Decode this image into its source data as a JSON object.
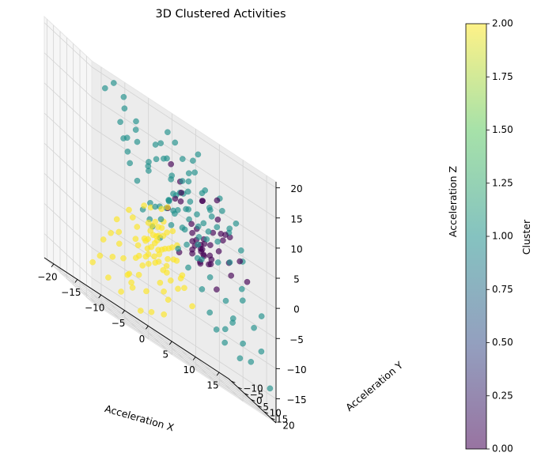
{
  "chart_data": {
    "type": "scatter",
    "projection": "3d",
    "title": "3D Clustered Activities",
    "xlabel": "Acceleration X",
    "ylabel": "Acceleration Y",
    "zlabel": "Acceleration Z",
    "xlim": [
      -22,
      17
    ],
    "ylim": [
      -12,
      24
    ],
    "zlim": [
      -19,
      21
    ],
    "x_ticks": [
      -20,
      -15,
      -10,
      -5,
      0,
      5,
      10,
      15
    ],
    "y_ticks": [
      -10,
      -5,
      0,
      5,
      10,
      15,
      20
    ],
    "z_ticks": [
      -15,
      -10,
      -5,
      0,
      5,
      10,
      15,
      20
    ],
    "grid": true,
    "colormap": "viridis",
    "marker_alpha": 0.5,
    "colorbar": {
      "label": "Cluster",
      "range": [
        0.0,
        2.0
      ],
      "ticks": [
        "0.00",
        "0.25",
        "0.50",
        "0.75",
        "1.00",
        "1.25",
        "1.50",
        "1.75",
        "2.00"
      ],
      "colors": [
        "#440154",
        "#3b528b",
        "#21918c",
        "#5ec962",
        "#fde725"
      ]
    },
    "series": [
      {
        "cluster": 0,
        "color": "#440154",
        "points": [
          [
            2.5,
            14.5,
            1.0
          ],
          [
            4.0,
            15.5,
            0.5
          ],
          [
            3.2,
            13.0,
            2.0
          ],
          [
            5.0,
            16.0,
            -0.5
          ],
          [
            1.8,
            15.0,
            1.5
          ],
          [
            4.5,
            14.0,
            3.0
          ],
          [
            3.0,
            16.5,
            -1.0
          ],
          [
            2.2,
            13.5,
            0.0
          ],
          [
            5.5,
            15.0,
            1.0
          ],
          [
            3.8,
            17.0,
            2.5
          ],
          [
            4.2,
            12.5,
            -1.5
          ],
          [
            2.8,
            14.8,
            4.0
          ],
          [
            6.0,
            14.5,
            0.5
          ],
          [
            1.5,
            16.0,
            -0.5
          ],
          [
            3.5,
            15.2,
            1.8
          ],
          [
            4.8,
            13.2,
            0.2
          ],
          [
            2.0,
            14.2,
            2.8
          ],
          [
            3.3,
            16.2,
            0.8
          ],
          [
            5.2,
            16.8,
            -0.2
          ],
          [
            4.0,
            14.6,
            1.2
          ],
          [
            7.0,
            18.0,
            6.0
          ],
          [
            6.5,
            17.5,
            8.0
          ],
          [
            8.0,
            16.0,
            5.0
          ],
          [
            -1.0,
            12.0,
            6.5
          ],
          [
            0.5,
            19.0,
            4.5
          ],
          [
            7.5,
            13.0,
            -4.0
          ],
          [
            9.0,
            17.0,
            2.0
          ],
          [
            -2.0,
            10.0,
            4.0
          ],
          [
            6.0,
            20.0,
            3.0
          ],
          [
            1.0,
            9.5,
            8.0
          ],
          [
            8.5,
            19.5,
            6.5
          ],
          [
            -0.5,
            14.0,
            10.0
          ],
          [
            5.0,
            11.0,
            9.0
          ],
          [
            10.0,
            15.0,
            0.0
          ],
          [
            3.0,
            18.5,
            9.5
          ],
          [
            -3.0,
            16.0,
            12.0
          ],
          [
            7.0,
            10.0,
            2.5
          ],
          [
            2.0,
            20.5,
            1.5
          ],
          [
            11.0,
            18.0,
            3.5
          ],
          [
            -1.5,
            18.0,
            7.0
          ],
          [
            4.5,
            21.0,
            5.5
          ],
          [
            9.5,
            12.5,
            6.0
          ],
          [
            0.0,
            11.5,
            -2.0
          ],
          [
            6.8,
            15.8,
            11.0
          ],
          [
            12.0,
            20.0,
            1.0
          ]
        ]
      },
      {
        "cluster": 1,
        "color": "#21918c",
        "points": [
          [
            0.0,
            12.0,
            8.0
          ],
          [
            -2.0,
            13.0,
            10.0
          ],
          [
            2.0,
            11.0,
            9.0
          ],
          [
            -4.0,
            14.0,
            12.0
          ],
          [
            1.0,
            15.0,
            11.0
          ],
          [
            3.0,
            12.5,
            13.0
          ],
          [
            -1.0,
            10.5,
            7.0
          ],
          [
            -3.0,
            16.0,
            9.5
          ],
          [
            4.0,
            14.5,
            10.5
          ],
          [
            0.5,
            17.0,
            12.5
          ],
          [
            -5.0,
            12.0,
            11.0
          ],
          [
            2.5,
            9.5,
            6.0
          ],
          [
            6.0,
            13.5,
            8.5
          ],
          [
            -2.5,
            18.0,
            7.5
          ],
          [
            5.0,
            16.5,
            9.0
          ],
          [
            -6.0,
            15.0,
            13.5
          ],
          [
            1.5,
            8.5,
            10.0
          ],
          [
            7.0,
            15.0,
            6.5
          ],
          [
            -3.5,
            10.0,
            14.0
          ],
          [
            3.5,
            18.5,
            11.5
          ],
          [
            -7.0,
            13.0,
            9.0
          ],
          [
            8.0,
            12.0,
            4.0
          ],
          [
            0.0,
            19.0,
            5.0
          ],
          [
            -1.5,
            7.5,
            12.0
          ],
          [
            9.0,
            17.0,
            7.0
          ],
          [
            -8.0,
            17.0,
            10.0
          ],
          [
            10.0,
            14.0,
            2.0
          ],
          [
            -4.5,
            19.5,
            6.0
          ],
          [
            6.5,
            9.0,
            3.0
          ],
          [
            -9.0,
            11.0,
            15.0
          ],
          [
            11.0,
            19.0,
            5.5
          ],
          [
            -5.5,
            8.0,
            8.0
          ],
          [
            4.5,
            20.0,
            8.0
          ],
          [
            -10.0,
            15.5,
            12.0
          ],
          [
            12.0,
            16.0,
            -1.0
          ],
          [
            -2.0,
            21.0,
            3.0
          ],
          [
            8.5,
            10.5,
            0.5
          ],
          [
            -6.5,
            20.0,
            4.0
          ],
          [
            13.0,
            13.0,
            -3.0
          ],
          [
            -11.0,
            18.0,
            14.0
          ],
          [
            -12.0,
            13.0,
            16.0
          ],
          [
            -13.0,
            16.0,
            18.0
          ],
          [
            -14.0,
            12.0,
            19.0
          ],
          [
            -15.0,
            9.0,
            17.0
          ],
          [
            -11.5,
            8.0,
            13.0
          ],
          [
            -9.5,
            6.0,
            11.0
          ],
          [
            -8.5,
            4.5,
            7.0
          ],
          [
            -7.5,
            6.5,
            5.0
          ],
          [
            -10.5,
            10.0,
            9.0
          ],
          [
            -12.5,
            14.0,
            11.0
          ],
          [
            14.0,
            18.0,
            -6.0
          ],
          [
            15.0,
            20.0,
            -9.0
          ],
          [
            13.5,
            17.5,
            -12.0
          ],
          [
            12.5,
            15.0,
            -10.0
          ],
          [
            11.0,
            13.0,
            -7.0
          ],
          [
            10.0,
            11.0,
            -5.0
          ],
          [
            9.5,
            12.0,
            -12.0
          ],
          [
            14.5,
            22.0,
            -3.0
          ],
          [
            16.0,
            23.0,
            -14.0
          ],
          [
            7.5,
            8.0,
            -3.0
          ],
          [
            6.0,
            7.0,
            -1.0
          ],
          [
            5.5,
            6.0,
            1.0
          ],
          [
            3.0,
            5.0,
            2.0
          ],
          [
            1.0,
            4.5,
            3.5
          ],
          [
            -0.5,
            5.5,
            5.0
          ],
          [
            -1.5,
            3.0,
            1.0
          ],
          [
            -3.0,
            4.0,
            2.5
          ],
          [
            2.0,
            3.5,
            -2.0
          ],
          [
            4.0,
            4.0,
            -4.0
          ],
          [
            6.5,
            5.5,
            -6.0
          ],
          [
            0.0,
            14.0,
            14.0
          ],
          [
            -2.0,
            15.5,
            16.0
          ],
          [
            1.5,
            16.5,
            15.0
          ],
          [
            -4.0,
            17.0,
            17.0
          ],
          [
            3.0,
            15.0,
            16.5
          ],
          [
            2.0,
            10.0,
            0.0
          ],
          [
            4.0,
            11.0,
            -1.0
          ],
          [
            -1.0,
            9.0,
            1.5
          ],
          [
            5.0,
            8.5,
            2.5
          ],
          [
            0.0,
            7.0,
            4.0
          ],
          [
            7.0,
            19.0,
            10.0
          ],
          [
            8.0,
            21.0,
            8.0
          ],
          [
            9.5,
            20.5,
            9.5
          ],
          [
            10.5,
            22.0,
            4.0
          ],
          [
            5.5,
            22.5,
            12.0
          ],
          [
            -6.0,
            11.0,
            3.0
          ],
          [
            -7.0,
            9.0,
            1.0
          ],
          [
            -5.0,
            7.0,
            0.0
          ],
          [
            -4.0,
            5.5,
            -1.0
          ],
          [
            -2.5,
            6.0,
            -2.0
          ],
          [
            12.0,
            9.0,
            -8.0
          ],
          [
            11.0,
            7.0,
            -10.0
          ],
          [
            13.0,
            11.0,
            -13.0
          ],
          [
            8.0,
            6.0,
            -9.0
          ],
          [
            9.0,
            7.5,
            -11.0
          ],
          [
            1.0,
            13.0,
            6.0
          ],
          [
            -1.0,
            14.0,
            5.0
          ],
          [
            3.5,
            13.5,
            4.5
          ],
          [
            -3.0,
            12.5,
            4.0
          ],
          [
            2.5,
            16.0,
            6.5
          ],
          [
            5.0,
            12.0,
            5.5
          ],
          [
            -0.5,
            16.5,
            8.5
          ],
          [
            4.5,
            17.5,
            5.0
          ],
          [
            -2.0,
            11.0,
            5.5
          ],
          [
            0.5,
            18.0,
            8.0
          ]
        ]
      },
      {
        "cluster": 2,
        "color": "#fde725",
        "points": [
          [
            -2.0,
            3.0,
            -2.0
          ],
          [
            -1.0,
            2.0,
            -4.0
          ],
          [
            -3.0,
            4.0,
            0.0
          ],
          [
            0.0,
            3.5,
            -3.0
          ],
          [
            -2.5,
            1.5,
            -6.0
          ],
          [
            -1.5,
            5.0,
            1.0
          ],
          [
            -4.0,
            2.5,
            -1.0
          ],
          [
            0.5,
            1.0,
            -5.0
          ],
          [
            -3.5,
            5.5,
            -3.5
          ],
          [
            -0.5,
            4.0,
            -0.5
          ],
          [
            -5.0,
            3.0,
            -4.0
          ],
          [
            1.0,
            2.5,
            -2.5
          ],
          [
            -2.0,
            0.5,
            -7.0
          ],
          [
            -4.5,
            6.0,
            2.0
          ],
          [
            1.5,
            4.5,
            -1.5
          ],
          [
            -6.0,
            1.0,
            -3.0
          ],
          [
            -3.0,
            -1.0,
            -8.0
          ],
          [
            0.0,
            6.5,
            0.5
          ],
          [
            -1.0,
            -0.5,
            -6.5
          ],
          [
            -5.5,
            4.5,
            1.5
          ],
          [
            2.0,
            0.0,
            -4.5
          ],
          [
            -7.0,
            3.5,
            -5.0
          ],
          [
            -2.5,
            7.0,
            3.0
          ],
          [
            1.0,
            -1.5,
            -7.5
          ],
          [
            -6.5,
            -0.5,
            -2.0
          ],
          [
            -4.0,
            -2.0,
            -9.0
          ],
          [
            3.0,
            3.0,
            -6.0
          ],
          [
            -8.0,
            2.0,
            -1.0
          ],
          [
            -1.5,
            8.0,
            4.0
          ],
          [
            0.0,
            -3.0,
            -10.0
          ],
          [
            -3.5,
            0.0,
            -5.5
          ],
          [
            -2.0,
            2.0,
            -3.0
          ],
          [
            -1.0,
            3.0,
            -1.5
          ],
          [
            -3.0,
            2.5,
            -2.5
          ],
          [
            -2.5,
            4.5,
            -0.5
          ],
          [
            -4.0,
            4.0,
            -2.0
          ],
          [
            -1.5,
            1.0,
            -4.5
          ],
          [
            -0.5,
            2.5,
            -3.5
          ],
          [
            -3.5,
            3.5,
            -1.0
          ],
          [
            -2.0,
            3.5,
            -5.0
          ],
          [
            -9.0,
            -2.0,
            -6.0
          ],
          [
            -10.0,
            0.0,
            -4.0
          ],
          [
            -8.5,
            -3.5,
            -8.0
          ],
          [
            -7.5,
            -4.0,
            -10.0
          ],
          [
            -11.0,
            -1.0,
            -7.0
          ],
          [
            -12.0,
            -3.0,
            -9.0
          ],
          [
            -6.0,
            -5.0,
            -12.0
          ],
          [
            -9.5,
            -5.0,
            -11.0
          ],
          [
            -13.0,
            -2.0,
            -12.0
          ],
          [
            -5.0,
            -6.0,
            -14.0
          ],
          [
            2.0,
            -4.0,
            -12.0
          ],
          [
            3.5,
            -2.0,
            -9.0
          ],
          [
            4.0,
            1.0,
            -8.0
          ],
          [
            5.0,
            3.5,
            -10.0
          ],
          [
            1.5,
            -5.5,
            -15.0
          ],
          [
            -1.0,
            -6.0,
            -16.0
          ],
          [
            -3.0,
            -7.0,
            -17.0
          ],
          [
            -7.0,
            -7.5,
            -16.0
          ],
          [
            -10.0,
            -6.5,
            -15.0
          ],
          [
            -14.0,
            -4.0,
            -14.0
          ],
          [
            -5.0,
            6.0,
            -6.0
          ],
          [
            -6.0,
            7.5,
            -4.0
          ],
          [
            -4.0,
            8.5,
            -2.0
          ],
          [
            -3.0,
            9.0,
            0.0
          ],
          [
            -7.5,
            5.5,
            -8.0
          ],
          [
            -8.0,
            1.0,
            -12.0
          ],
          [
            -6.5,
            -1.5,
            -13.0
          ],
          [
            -4.5,
            -3.0,
            -11.0
          ],
          [
            -2.5,
            -4.5,
            -13.0
          ],
          [
            0.5,
            -2.0,
            -11.0
          ],
          [
            -1.0,
            5.5,
            -6.0
          ],
          [
            0.0,
            5.0,
            -8.0
          ],
          [
            1.0,
            6.0,
            -4.0
          ],
          [
            -2.0,
            6.5,
            -7.0
          ],
          [
            2.0,
            5.5,
            -6.5
          ],
          [
            -3.0,
            -1.5,
            -4.0
          ],
          [
            -2.0,
            -2.5,
            -5.0
          ],
          [
            -4.0,
            0.5,
            -7.0
          ],
          [
            -5.5,
            0.0,
            -6.0
          ],
          [
            -6.0,
            2.5,
            -7.5
          ]
        ]
      }
    ]
  }
}
